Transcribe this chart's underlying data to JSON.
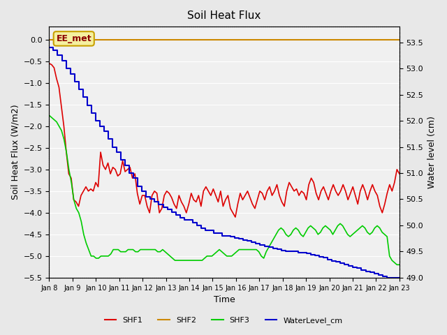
{
  "title": "Soil Heat Flux",
  "xlabel": "Time",
  "ylabel_left": "Soil Heat Flux (W/m2)",
  "ylabel_right": "Water level (cm)",
  "ylim_left": [
    -5.5,
    0.3
  ],
  "ylim_right": [
    49.0,
    53.8
  ],
  "bg_color": "#e8e8e8",
  "plot_bg_color": "#f0f0f0",
  "annotation_label": "EE_met",
  "annotation_box_color": "#f5f0a0",
  "annotation_box_edge": "#c8a000",
  "annotation_text_color": "#8b0000",
  "shf2_value": 0.0,
  "x_tick_labels": [
    "Jan 8",
    "Jan 9",
    "Jan 10",
    "Jan 11",
    "Jan 12",
    "Jan 13",
    "Jan 14",
    "Jan 15",
    "Jan 16",
    "Jan 17",
    "Jan 18",
    "Jan 19",
    "Jan 20",
    "Jan 21",
    "Jan 22",
    "Jan 23"
  ],
  "colors": {
    "SHF1": "#dd0000",
    "SHF2": "#cc8800",
    "SHF3": "#00cc00",
    "WaterLevel": "#0000cc"
  },
  "shf1": [
    -0.55,
    -0.58,
    -0.65,
    -0.9,
    -1.1,
    -1.55,
    -2.0,
    -2.6,
    -3.1,
    -3.2,
    -3.7,
    -3.75,
    -3.85,
    -3.6,
    -3.5,
    -3.4,
    -3.5,
    -3.45,
    -3.5,
    -3.3,
    -3.4,
    -2.6,
    -2.9,
    -3.0,
    -2.85,
    -3.1,
    -2.95,
    -3.0,
    -3.15,
    -3.1,
    -2.8,
    -3.05,
    -3.0,
    -2.95,
    -3.2,
    -3.1,
    -3.55,
    -3.8,
    -3.6,
    -3.6,
    -3.85,
    -4.0,
    -3.6,
    -3.5,
    -3.55,
    -4.0,
    -3.9,
    -3.6,
    -3.5,
    -3.55,
    -3.65,
    -3.8,
    -3.9,
    -3.6,
    -3.75,
    -3.85,
    -4.0,
    -3.8,
    -3.55,
    -3.7,
    -3.75,
    -3.6,
    -3.85,
    -3.5,
    -3.4,
    -3.5,
    -3.6,
    -3.45,
    -3.6,
    -3.75,
    -3.5,
    -3.85,
    -3.7,
    -3.6,
    -3.9,
    -4.0,
    -4.1,
    -3.8,
    -3.55,
    -3.7,
    -3.6,
    -3.5,
    -3.65,
    -3.8,
    -3.9,
    -3.7,
    -3.5,
    -3.55,
    -3.7,
    -3.5,
    -3.4,
    -3.6,
    -3.5,
    -3.35,
    -3.6,
    -3.75,
    -3.85,
    -3.5,
    -3.3,
    -3.4,
    -3.5,
    -3.45,
    -3.6,
    -3.5,
    -3.55,
    -3.7,
    -3.35,
    -3.2,
    -3.3,
    -3.55,
    -3.7,
    -3.5,
    -3.4,
    -3.55,
    -3.7,
    -3.5,
    -3.35,
    -3.5,
    -3.6,
    -3.5,
    -3.35,
    -3.5,
    -3.7,
    -3.55,
    -3.4,
    -3.6,
    -3.8,
    -3.5,
    -3.35,
    -3.5,
    -3.7,
    -3.5,
    -3.35,
    -3.5,
    -3.6,
    -3.85,
    -4.0,
    -3.8,
    -3.55,
    -3.35,
    -3.5,
    -3.3,
    -3.0,
    -3.1
  ],
  "shf3": [
    -1.75,
    -1.8,
    -1.85,
    -1.9,
    -2.0,
    -2.1,
    -2.3,
    -2.6,
    -3.0,
    -3.3,
    -3.7,
    -3.9,
    -4.0,
    -4.2,
    -4.5,
    -4.7,
    -4.85,
    -5.0,
    -5.0,
    -5.05,
    -5.05,
    -5.0,
    -5.0,
    -5.0,
    -5.0,
    -4.95,
    -4.85,
    -4.85,
    -4.85,
    -4.9,
    -4.9,
    -4.9,
    -4.85,
    -4.85,
    -4.85,
    -4.9,
    -4.9,
    -4.85,
    -4.85,
    -4.85,
    -4.85,
    -4.85,
    -4.85,
    -4.85,
    -4.9,
    -4.9,
    -4.85,
    -4.9,
    -4.95,
    -5.0,
    -5.05,
    -5.1,
    -5.1,
    -5.1,
    -5.1,
    -5.1,
    -5.1,
    -5.1,
    -5.1,
    -5.1,
    -5.1,
    -5.1,
    -5.1,
    -5.05,
    -5.0,
    -5.0,
    -5.0,
    -4.95,
    -4.9,
    -4.85,
    -4.9,
    -4.95,
    -5.0,
    -5.0,
    -5.0,
    -4.95,
    -4.9,
    -4.85,
    -4.85,
    -4.85,
    -4.85,
    -4.85,
    -4.85,
    -4.85,
    -4.85,
    -4.9,
    -5.0,
    -5.05,
    -4.9,
    -4.8,
    -4.7,
    -4.6,
    -4.5,
    -4.4,
    -4.35,
    -4.4,
    -4.5,
    -4.55,
    -4.5,
    -4.4,
    -4.35,
    -4.4,
    -4.5,
    -4.55,
    -4.45,
    -4.35,
    -4.3,
    -4.35,
    -4.4,
    -4.5,
    -4.45,
    -4.35,
    -4.3,
    -4.35,
    -4.4,
    -4.5,
    -4.4,
    -4.3,
    -4.25,
    -4.3,
    -4.4,
    -4.5,
    -4.55,
    -4.5,
    -4.45,
    -4.4,
    -4.35,
    -4.3,
    -4.35,
    -4.45,
    -4.5,
    -4.45,
    -4.35,
    -4.3,
    -4.35,
    -4.45,
    -4.5,
    -4.55,
    -5.0,
    -5.1,
    -5.15,
    -5.2,
    -5.2
  ],
  "water_level": [
    53.4,
    53.35,
    53.25,
    53.15,
    53.0,
    52.9,
    52.75,
    52.6,
    52.45,
    52.3,
    52.15,
    52.0,
    51.9,
    51.8,
    51.65,
    51.5,
    51.4,
    51.25,
    51.15,
    51.0,
    50.9,
    50.75,
    50.65,
    50.55,
    50.5,
    50.45,
    50.4,
    50.35,
    50.3,
    50.25,
    50.2,
    50.15,
    50.1,
    50.1,
    50.05,
    50.0,
    49.95,
    49.9,
    49.9,
    49.85,
    49.85,
    49.8,
    49.8,
    49.78,
    49.76,
    49.74,
    49.72,
    49.7,
    49.68,
    49.65,
    49.62,
    49.6,
    49.58,
    49.56,
    49.54,
    49.52,
    49.5,
    49.5,
    49.5,
    49.48,
    49.48,
    49.46,
    49.44,
    49.42,
    49.4,
    49.38,
    49.35,
    49.32,
    49.3,
    49.28,
    49.25,
    49.22,
    49.2,
    49.18,
    49.15,
    49.12,
    49.1,
    49.08,
    49.05,
    49.02,
    49.0,
    49.0,
    49.0,
    49.0
  ]
}
